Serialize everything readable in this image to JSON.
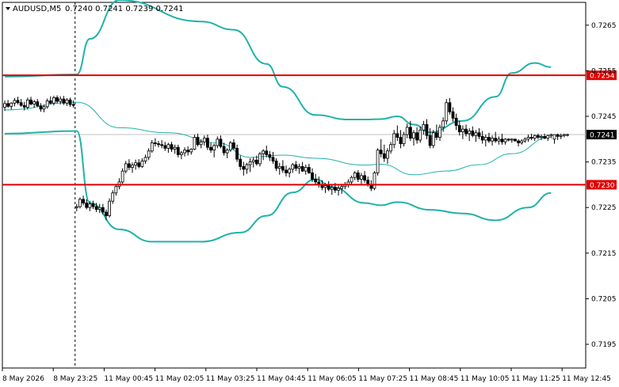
{
  "chart_data": {
    "type": "candlestick",
    "title": "AUDUSD,M5  0.7240 0.7241 0.7239 0.7241",
    "symbol": "AUDUSD,M5",
    "ohlc_header": "0.7240 0.7241 0.7239 0.7241",
    "y_ticks": [
      "0.7265",
      "0.7255",
      "0.7245",
      "0.7235",
      "0.7225",
      "0.7215",
      "0.7205",
      "0.7195"
    ],
    "y_tick_values": [
      0.7265,
      0.7255,
      0.7245,
      0.7235,
      0.7225,
      0.7215,
      0.7205,
      0.7195
    ],
    "ylim": [
      0.71898,
      0.727
    ],
    "x_ticks": [
      "8 May 2026",
      "8 May 23:25",
      "11 May 00:45",
      "11 May 02:05",
      "11 May 03:25",
      "11 May 04:45",
      "11 May 06:05",
      "11 May 07:25",
      "11 May 08:45",
      "11 May 10:05",
      "11 May 11:25",
      "11 May 12:45"
    ],
    "levels": [
      {
        "label": "0.7254",
        "value": 0.7254,
        "color": "#e00000"
      },
      {
        "label": "0.7230",
        "value": 0.723,
        "color": "#e00000"
      }
    ],
    "current_price": {
      "label": "0.7241",
      "value": 0.7241
    },
    "bollinger": {
      "period_break_index": 22,
      "upper": [
        [
          0,
          0.72537
        ],
        [
          22,
          0.72542
        ],
        [
          26,
          0.7262
        ],
        [
          35,
          0.72705
        ],
        [
          60,
          0.72658
        ],
        [
          70,
          0.7264
        ],
        [
          80,
          0.72565
        ],
        [
          85,
          0.72515
        ],
        [
          95,
          0.72453
        ],
        [
          105,
          0.72443
        ],
        [
          110,
          0.72443
        ],
        [
          115,
          0.72444
        ],
        [
          120,
          0.7245
        ],
        [
          125,
          0.72432
        ],
        [
          130,
          0.72415
        ],
        [
          140,
          0.7244
        ],
        [
          150,
          0.72493
        ],
        [
          155,
          0.72545
        ],
        [
          162,
          0.72567
        ],
        [
          167,
          0.72558
        ]
      ],
      "middle": [
        [
          0,
          0.72464
        ],
        [
          22,
          0.72481
        ],
        [
          35,
          0.72425
        ],
        [
          50,
          0.72414
        ],
        [
          65,
          0.72392
        ],
        [
          75,
          0.7236
        ],
        [
          85,
          0.72365
        ],
        [
          95,
          0.72358
        ],
        [
          110,
          0.72343
        ],
        [
          115,
          0.72345
        ],
        [
          125,
          0.72322
        ],
        [
          135,
          0.7233
        ],
        [
          145,
          0.72344
        ],
        [
          155,
          0.72368
        ],
        [
          167,
          0.72405
        ]
      ],
      "lower": [
        [
          0,
          0.72412
        ],
        [
          22,
          0.72418
        ],
        [
          26,
          0.7226
        ],
        [
          35,
          0.72202
        ],
        [
          45,
          0.72175
        ],
        [
          60,
          0.72175
        ],
        [
          72,
          0.72195
        ],
        [
          80,
          0.72232
        ],
        [
          88,
          0.72283
        ],
        [
          95,
          0.72312
        ],
        [
          100,
          0.72295
        ],
        [
          110,
          0.7226
        ],
        [
          115,
          0.72255
        ],
        [
          120,
          0.72262
        ],
        [
          130,
          0.72245
        ],
        [
          140,
          0.72237
        ],
        [
          150,
          0.72222
        ],
        [
          160,
          0.7225
        ],
        [
          167,
          0.72282
        ]
      ]
    },
    "candles": [
      [
        0.7247,
        0.72485,
        0.72462,
        0.72478
      ],
      [
        0.72478,
        0.72486,
        0.72469,
        0.72472
      ],
      [
        0.72472,
        0.72481,
        0.72465,
        0.72479
      ],
      [
        0.72479,
        0.7249,
        0.72472,
        0.72485
      ],
      [
        0.72485,
        0.72493,
        0.72476,
        0.7248
      ],
      [
        0.7248,
        0.72488,
        0.72471,
        0.72474
      ],
      [
        0.72474,
        0.72482,
        0.72463,
        0.7247
      ],
      [
        0.7247,
        0.72491,
        0.72465,
        0.72486
      ],
      [
        0.72486,
        0.72493,
        0.72474,
        0.72477
      ],
      [
        0.72477,
        0.72486,
        0.72469,
        0.72482
      ],
      [
        0.72482,
        0.72488,
        0.7247,
        0.72473
      ],
      [
        0.72473,
        0.72479,
        0.7246,
        0.72466
      ],
      [
        0.72466,
        0.72476,
        0.72459,
        0.72471
      ],
      [
        0.72471,
        0.72489,
        0.72467,
        0.72484
      ],
      [
        0.72484,
        0.72494,
        0.72476,
        0.72479
      ],
      [
        0.72479,
        0.72495,
        0.72474,
        0.72491
      ],
      [
        0.72491,
        0.72496,
        0.72478,
        0.72483
      ],
      [
        0.72483,
        0.72494,
        0.72476,
        0.72488
      ],
      [
        0.72488,
        0.72495,
        0.72475,
        0.72479
      ],
      [
        0.72479,
        0.7249,
        0.72473,
        0.72486
      ],
      [
        0.72486,
        0.72491,
        0.72471,
        0.72476
      ],
      [
        0.72476,
        0.72485,
        0.72469,
        0.72474
      ],
      [
        0.7225,
        0.72258,
        0.72242,
        0.72252
      ],
      [
        0.72252,
        0.72272,
        0.72248,
        0.72268
      ],
      [
        0.72268,
        0.72276,
        0.72255,
        0.7226
      ],
      [
        0.7226,
        0.72268,
        0.72246,
        0.7225
      ],
      [
        0.7225,
        0.72264,
        0.72242,
        0.72258
      ],
      [
        0.72258,
        0.72265,
        0.72247,
        0.72252
      ],
      [
        0.72252,
        0.7226,
        0.7224,
        0.72246
      ],
      [
        0.72246,
        0.72258,
        0.72238,
        0.7225
      ],
      [
        0.7225,
        0.72258,
        0.72235,
        0.7224
      ],
      [
        0.7224,
        0.72246,
        0.72222,
        0.72232
      ],
      [
        0.72232,
        0.7227,
        0.72228,
        0.72264
      ],
      [
        0.72264,
        0.72288,
        0.72258,
        0.72282
      ],
      [
        0.72282,
        0.72302,
        0.72276,
        0.72296
      ],
      [
        0.72296,
        0.72314,
        0.7229,
        0.72306
      ],
      [
        0.72306,
        0.72336,
        0.72302,
        0.7233
      ],
      [
        0.7233,
        0.72352,
        0.72325,
        0.72346
      ],
      [
        0.72346,
        0.72356,
        0.72332,
        0.72338
      ],
      [
        0.72338,
        0.72349,
        0.72326,
        0.72343
      ],
      [
        0.72343,
        0.72355,
        0.72333,
        0.72348
      ],
      [
        0.72348,
        0.72356,
        0.72336,
        0.7234
      ],
      [
        0.7234,
        0.72358,
        0.72337,
        0.72352
      ],
      [
        0.72352,
        0.72366,
        0.72346,
        0.7236
      ],
      [
        0.7236,
        0.7238,
        0.72354,
        0.72374
      ],
      [
        0.72374,
        0.72398,
        0.7237,
        0.72392
      ],
      [
        0.72392,
        0.72402,
        0.72384,
        0.7239
      ],
      [
        0.7239,
        0.72396,
        0.72382,
        0.72388
      ],
      [
        0.72388,
        0.72398,
        0.7238,
        0.72386
      ],
      [
        0.72386,
        0.72394,
        0.72374,
        0.7238
      ],
      [
        0.7238,
        0.72392,
        0.7237,
        0.72388
      ],
      [
        0.72388,
        0.72394,
        0.72372,
        0.72378
      ],
      [
        0.72378,
        0.72388,
        0.72368,
        0.72382
      ],
      [
        0.72382,
        0.72388,
        0.7236,
        0.72366
      ],
      [
        0.72366,
        0.72374,
        0.72356,
        0.7237
      ],
      [
        0.7237,
        0.72382,
        0.72362,
        0.72376
      ],
      [
        0.72376,
        0.72384,
        0.72364,
        0.72372
      ],
      [
        0.72372,
        0.7238,
        0.72366,
        0.72378
      ],
      [
        0.72378,
        0.7241,
        0.72376,
        0.72404
      ],
      [
        0.72404,
        0.72412,
        0.72384,
        0.72388
      ],
      [
        0.72388,
        0.724,
        0.7238,
        0.72394
      ],
      [
        0.72394,
        0.72408,
        0.72386,
        0.72402
      ],
      [
        0.72402,
        0.7241,
        0.72376,
        0.72382
      ],
      [
        0.72382,
        0.72392,
        0.7237,
        0.72376
      ],
      [
        0.72376,
        0.7239,
        0.7236,
        0.72386
      ],
      [
        0.72386,
        0.72406,
        0.7238,
        0.724
      ],
      [
        0.724,
        0.72408,
        0.7238,
        0.72384
      ],
      [
        0.72384,
        0.72392,
        0.72364,
        0.7237
      ],
      [
        0.7237,
        0.7238,
        0.72358,
        0.72376
      ],
      [
        0.72376,
        0.72396,
        0.72372,
        0.72392
      ],
      [
        0.72392,
        0.724,
        0.72376,
        0.7238
      ],
      [
        0.7238,
        0.72388,
        0.7235,
        0.72356
      ],
      [
        0.72356,
        0.72364,
        0.72332,
        0.7234
      ],
      [
        0.7234,
        0.7235,
        0.7232,
        0.72334
      ],
      [
        0.72334,
        0.72348,
        0.72324,
        0.72344
      ],
      [
        0.72344,
        0.72358,
        0.72328,
        0.7235
      ],
      [
        0.7235,
        0.7236,
        0.72338,
        0.72354
      ],
      [
        0.72354,
        0.72364,
        0.72342,
        0.72346
      ],
      [
        0.72346,
        0.72372,
        0.7234,
        0.72368
      ],
      [
        0.72368,
        0.72378,
        0.72354,
        0.72374
      ],
      [
        0.72374,
        0.72386,
        0.7236,
        0.72366
      ],
      [
        0.72366,
        0.72374,
        0.72352,
        0.7236
      ],
      [
        0.7236,
        0.72372,
        0.72346,
        0.72352
      ],
      [
        0.72352,
        0.72358,
        0.7233,
        0.72336
      ],
      [
        0.72336,
        0.72348,
        0.72322,
        0.7234
      ],
      [
        0.7234,
        0.72354,
        0.72326,
        0.72332
      ],
      [
        0.72332,
        0.72342,
        0.72318,
        0.72326
      ],
      [
        0.72326,
        0.72338,
        0.72316,
        0.72334
      ],
      [
        0.72334,
        0.72348,
        0.72326,
        0.72344
      ],
      [
        0.72344,
        0.72352,
        0.7233,
        0.72336
      ],
      [
        0.72336,
        0.72346,
        0.72324,
        0.7234
      ],
      [
        0.7234,
        0.7235,
        0.72328,
        0.7233
      ],
      [
        0.7233,
        0.72344,
        0.72322,
        0.72338
      ],
      [
        0.72338,
        0.72346,
        0.72324,
        0.72326
      ],
      [
        0.72326,
        0.72336,
        0.72306,
        0.72312
      ],
      [
        0.72312,
        0.72324,
        0.723,
        0.72306
      ],
      [
        0.72306,
        0.72318,
        0.72294,
        0.723
      ],
      [
        0.723,
        0.7231,
        0.72288,
        0.72294
      ],
      [
        0.72294,
        0.72304,
        0.72282,
        0.72298
      ],
      [
        0.72298,
        0.72308,
        0.72286,
        0.7229
      ],
      [
        0.7229,
        0.723,
        0.72278,
        0.72294
      ],
      [
        0.72294,
        0.72304,
        0.72282,
        0.72288
      ],
      [
        0.72288,
        0.72298,
        0.72276,
        0.72292
      ],
      [
        0.72292,
        0.72302,
        0.7228,
        0.72296
      ],
      [
        0.72296,
        0.72306,
        0.7229,
        0.723
      ],
      [
        0.723,
        0.72312,
        0.72294,
        0.72306
      ],
      [
        0.72306,
        0.7232,
        0.723,
        0.72316
      ],
      [
        0.72316,
        0.7233,
        0.7231,
        0.72326
      ],
      [
        0.72326,
        0.72332,
        0.72306,
        0.72312
      ],
      [
        0.72312,
        0.72326,
        0.72302,
        0.7232
      ],
      [
        0.7232,
        0.7233,
        0.72304,
        0.7231
      ],
      [
        0.7231,
        0.72318,
        0.72296,
        0.723
      ],
      [
        0.723,
        0.7231,
        0.72286,
        0.72292
      ],
      [
        0.72292,
        0.7233,
        0.72288,
        0.72326
      ],
      [
        0.72326,
        0.7238,
        0.7232,
        0.72376
      ],
      [
        0.72376,
        0.724,
        0.7236,
        0.72368
      ],
      [
        0.72368,
        0.72388,
        0.7235,
        0.72358
      ],
      [
        0.72358,
        0.7238,
        0.72346,
        0.72374
      ],
      [
        0.72374,
        0.72394,
        0.72368,
        0.72388
      ],
      [
        0.72388,
        0.7242,
        0.7238,
        0.72412
      ],
      [
        0.72412,
        0.7243,
        0.72396,
        0.72404
      ],
      [
        0.72404,
        0.7242,
        0.7238,
        0.7239
      ],
      [
        0.7239,
        0.72416,
        0.72384,
        0.7241
      ],
      [
        0.7241,
        0.72434,
        0.72402,
        0.72426
      ],
      [
        0.72426,
        0.7244,
        0.72396,
        0.72402
      ],
      [
        0.72402,
        0.7242,
        0.72386,
        0.72414
      ],
      [
        0.72414,
        0.72426,
        0.7239,
        0.72398
      ],
      [
        0.72398,
        0.72428,
        0.72392,
        0.7242
      ],
      [
        0.7242,
        0.7244,
        0.7241,
        0.72432
      ],
      [
        0.72432,
        0.72444,
        0.724,
        0.72408
      ],
      [
        0.72408,
        0.72424,
        0.7238,
        0.72386
      ],
      [
        0.72386,
        0.7242,
        0.7238,
        0.72414
      ],
      [
        0.72414,
        0.72432,
        0.72398,
        0.72404
      ],
      [
        0.72404,
        0.72432,
        0.72396,
        0.72426
      ],
      [
        0.72426,
        0.72448,
        0.72416,
        0.7244
      ],
      [
        0.7244,
        0.72488,
        0.72432,
        0.7248
      ],
      [
        0.7248,
        0.7249,
        0.72454,
        0.7246
      ],
      [
        0.7246,
        0.7247,
        0.72438,
        0.72446
      ],
      [
        0.72446,
        0.72456,
        0.7242,
        0.7243
      ],
      [
        0.7243,
        0.7244,
        0.72408,
        0.72416
      ],
      [
        0.72416,
        0.7243,
        0.724,
        0.72422
      ],
      [
        0.72422,
        0.72432,
        0.72406,
        0.72412
      ],
      [
        0.72412,
        0.72424,
        0.72396,
        0.72418
      ],
      [
        0.72418,
        0.72428,
        0.72404,
        0.72408
      ],
      [
        0.72408,
        0.7242,
        0.72394,
        0.72414
      ],
      [
        0.72414,
        0.72424,
        0.724,
        0.72406
      ],
      [
        0.72406,
        0.72418,
        0.7239,
        0.72398
      ],
      [
        0.72398,
        0.7241,
        0.72384,
        0.72404
      ],
      [
        0.72404,
        0.72414,
        0.72392,
        0.72396
      ],
      [
        0.72396,
        0.72408,
        0.72386,
        0.72402
      ],
      [
        0.72402,
        0.72416,
        0.72392,
        0.72396
      ],
      [
        0.72396,
        0.72406,
        0.72388,
        0.724
      ],
      [
        0.724,
        0.72412,
        0.72388,
        0.72394
      ],
      [
        0.72394,
        0.72402,
        0.72388,
        0.724
      ],
      [
        0.724,
        0.72402,
        0.72395,
        0.72398
      ],
      [
        0.72398,
        0.72402,
        0.72392,
        0.724
      ],
      [
        0.724,
        0.72401,
        0.72395,
        0.72396
      ],
      [
        0.72396,
        0.724,
        0.72384,
        0.72392
      ],
      [
        0.72392,
        0.724,
        0.72388,
        0.72396
      ],
      [
        0.72396,
        0.72404,
        0.72392,
        0.724
      ],
      [
        0.724,
        0.7241,
        0.72394,
        0.72404
      ],
      [
        0.72404,
        0.72412,
        0.72398,
        0.72402
      ],
      [
        0.72402,
        0.7241,
        0.72396,
        0.72408
      ],
      [
        0.72408,
        0.72412,
        0.724,
        0.72404
      ],
      [
        0.72404,
        0.7241,
        0.72398,
        0.72406
      ],
      [
        0.72406,
        0.72412,
        0.724,
        0.72402
      ],
      [
        0.72402,
        0.7241,
        0.72396,
        0.72408
      ],
      [
        0.72408,
        0.72412,
        0.72402,
        0.7241
      ],
      [
        0.724,
        0.7241,
        0.7239,
        0.7241
      ],
      [
        0.7241,
        0.72412,
        0.72398,
        0.72406
      ],
      [
        0.72406,
        0.72412,
        0.724,
        0.72408
      ],
      [
        0.72408,
        0.72412,
        0.72404,
        0.7241
      ],
      [
        0.7241,
        0.72412,
        0.72406,
        0.7241
      ]
    ]
  }
}
